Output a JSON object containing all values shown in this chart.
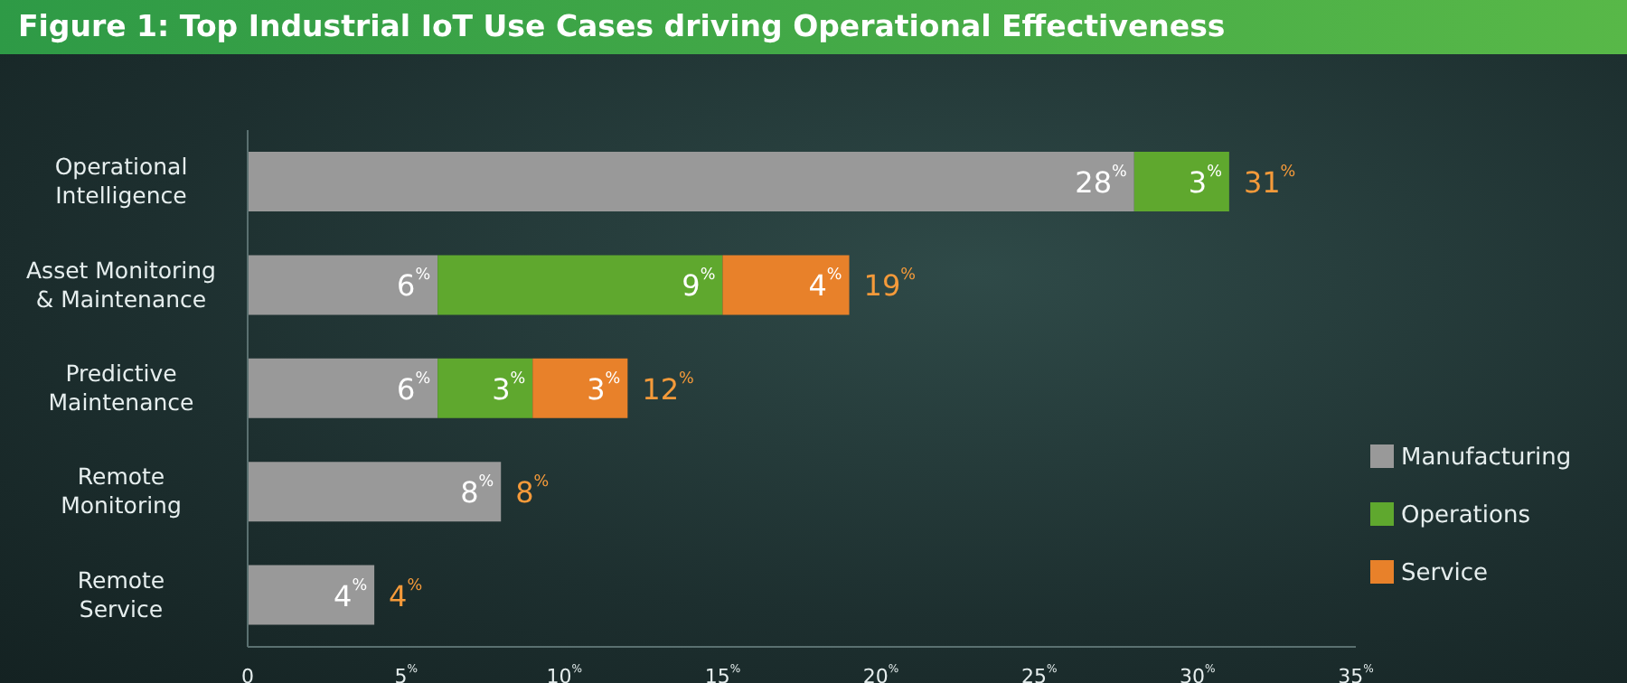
{
  "chart_data": {
    "type": "bar",
    "orientation": "horizontal",
    "stacked": true,
    "title": "Figure 1: Top Industrial IoT Use Cases driving Operational Effectiveness",
    "categories": [
      "Operational Intelligence",
      "Asset Monitoring & Maintenance",
      "Predictive Maintenance",
      "Remote Monitoring",
      "Remote Service"
    ],
    "series": [
      {
        "name": "Manufacturing",
        "color": "#999999",
        "values": [
          28,
          6,
          6,
          8,
          4
        ],
        "value_labels": [
          "28$^{%}$",
          "6$^{%}$",
          "6$^{%}$",
          "8$^{%}$",
          "4$^{%}$"
        ]
      },
      {
        "name": "Operations",
        "color": "#5fa82e",
        "values": [
          3,
          9,
          3,
          null,
          null
        ],
        "value_labels": [
          "3$^{%}$",
          "9$^{%}$",
          "3$^{%}$",
          null,
          null
        ]
      },
      {
        "name": "Service",
        "color": "#e8812a",
        "values": [
          null,
          4,
          3,
          null,
          null
        ],
        "value_labels": [
          null,
          "4$^{%}$",
          "3$^{%}$",
          null,
          null
        ]
      }
    ],
    "totals": [
      "31$^{%}$",
      "19$^{%}$",
      "12$^{%}$",
      "8$^{%}$",
      "4$^{%}$"
    ],
    "xlim": [
      0,
      35
    ],
    "xticks": [
      0,
      {
        "value": 5,
        "label": "5$^{%}$"
      },
      {
        "value": 10,
        "label": "10$^{%}$"
      },
      {
        "value": 15,
        "label": "15$^{%}$"
      },
      {
        "value": 20,
        "label": "20$^{%}$"
      },
      {
        "value": 25,
        "label": "25$^{%}$"
      },
      {
        "value": 30,
        "label": "30$^{%}$"
      },
      {
        "value": 35,
        "label": "35$^{%}$"
      }
    ],
    "legend": "bottom right"
  }
}
